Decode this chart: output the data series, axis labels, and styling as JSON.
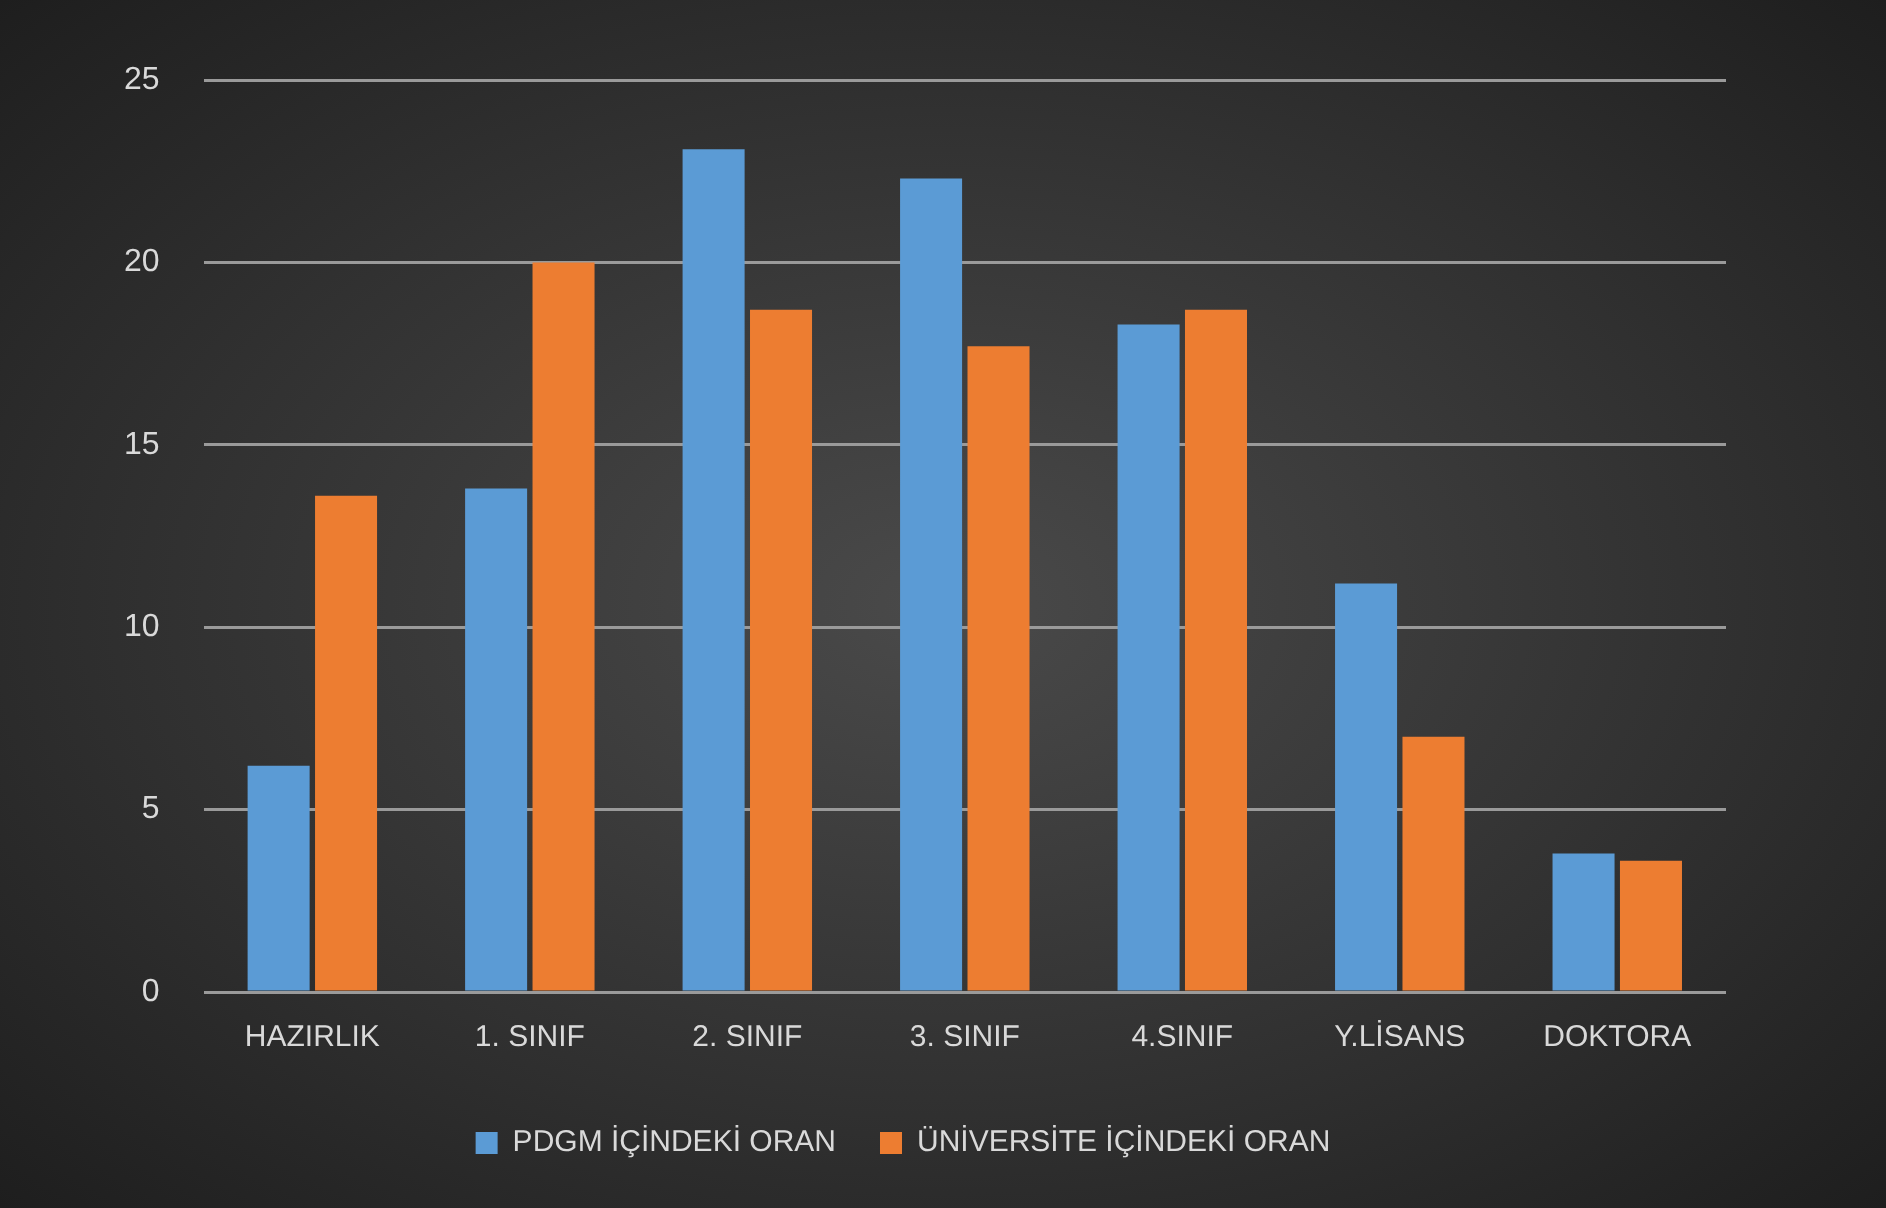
{
  "chart_data": {
    "type": "bar",
    "categories": [
      "HAZIRLIK",
      "1. SINIF",
      "2. SINIF",
      "3. SINIF",
      "4.SINIF",
      "Y.LİSANS",
      "DOKTORA"
    ],
    "series": [
      {
        "name": "PDGM İÇİNDEKİ ORAN",
        "color": "#5b9bd5",
        "values": [
          6.2,
          13.8,
          23.1,
          22.3,
          18.3,
          11.2,
          3.8
        ]
      },
      {
        "name": "ÜNİVERSİTE İÇİNDEKİ ORAN",
        "color": "#ed7d31",
        "values": [
          13.6,
          20.0,
          18.7,
          17.7,
          18.7,
          7.0,
          3.6
        ]
      }
    ],
    "ylim": [
      0,
      25
    ],
    "yticks": [
      0,
      5,
      10,
      15,
      20,
      25
    ],
    "grid": "y",
    "legend": "bottom"
  }
}
